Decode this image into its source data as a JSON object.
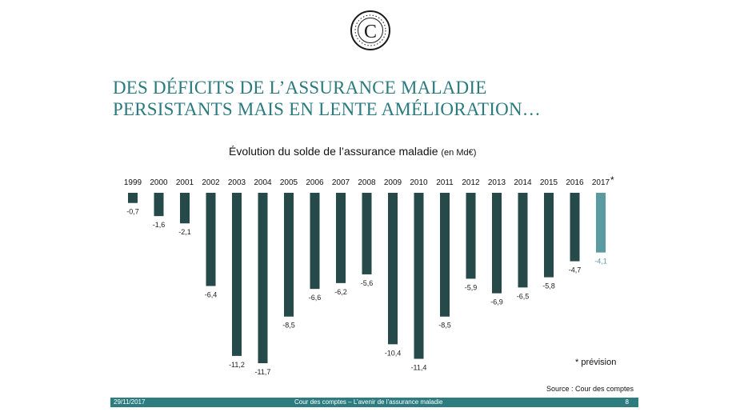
{
  "title": {
    "line1": "DES DÉFICITS DE L’ASSURANCE MALADIE",
    "line2": "PERSISTANTS MAIS EN LENTE AMÉLIORATION…"
  },
  "logo": {
    "icon": "cour-des-comptes-seal-icon",
    "letter": "C"
  },
  "colors": {
    "title": "#2a7a7e",
    "bar": "#264a4a",
    "forecast_bar": "#5a9aa0",
    "footer": "#2d7d80"
  },
  "chart_data": {
    "type": "bar",
    "title": "Évolution du solde de l’assurance maladie",
    "title_unit": "(en Md€)",
    "categories": [
      "1999",
      "2000",
      "2001",
      "2002",
      "2003",
      "2004",
      "2005",
      "2006",
      "2007",
      "2008",
      "2009",
      "2010",
      "2011",
      "2012",
      "2013",
      "2014",
      "2015",
      "2016",
      "2017"
    ],
    "values": [
      -0.7,
      -1.6,
      -2.1,
      -6.4,
      -11.2,
      -11.7,
      -8.5,
      -6.6,
      -6.2,
      -5.6,
      -10.4,
      -11.4,
      -8.5,
      -5.9,
      -6.9,
      -6.5,
      -5.8,
      -4.7,
      -4.1
    ],
    "value_labels": [
      "-0,7",
      "-1,6",
      "-2,1",
      "-6,4",
      "-11,2",
      "-11,7",
      "-8,5",
      "-6,6",
      "-6,2",
      "-5,6",
      "-10,4",
      "-11,4",
      "-8,5",
      "-5,9",
      "-6,9",
      "-6,5",
      "-5,8",
      "-4,7",
      "-4,1"
    ],
    "forecast_index": 18,
    "forecast_marker": "*",
    "ylim": [
      -11.7,
      0
    ],
    "xaxis_position": "top",
    "grid": false,
    "legend": "none"
  },
  "note": "* prévision",
  "source": "Source : Cour des comptes",
  "footer": {
    "date": "29/11/2017",
    "text": "Cour des comptes – L’avenir de l’assurance maladie",
    "page": "8"
  }
}
